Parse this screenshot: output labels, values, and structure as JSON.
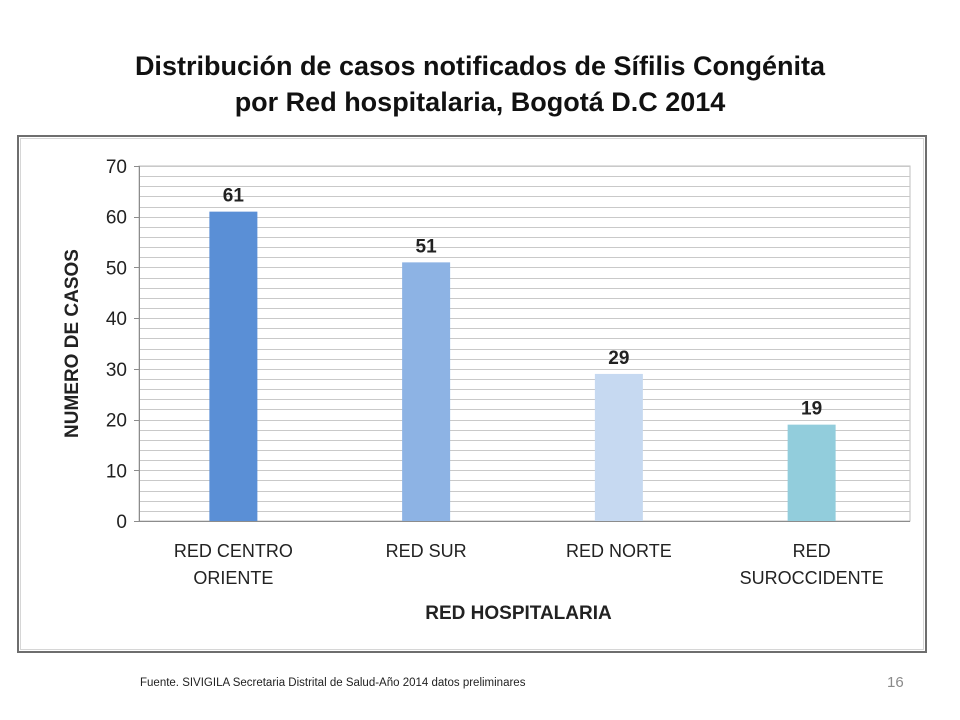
{
  "slide": {
    "title_line1": "Distribución de casos notificados de Sífilis Congénita",
    "title_line2": "por Red hospitalaria, Bogotá D.C 2014",
    "footer": "Fuente. SIVIGILA Secretaria Distrital de Salud-Año 2014 datos preliminares",
    "page_number": "16"
  },
  "chart_data": {
    "type": "bar",
    "title": "",
    "xlabel": "RED HOSPITALARIA",
    "ylabel": "NUMERO DE CASOS",
    "categories": [
      [
        "RED CENTRO",
        "ORIENTE"
      ],
      [
        "RED SUR"
      ],
      [
        "RED NORTE"
      ],
      [
        "RED",
        "SUROCCIDENTE"
      ]
    ],
    "values": [
      61,
      51,
      29,
      19
    ],
    "data_labels": [
      "61",
      "51",
      "29",
      "19"
    ],
    "bar_colors": [
      "#5a8fd6",
      "#8db3e4",
      "#c6d9f1",
      "#92cddc"
    ],
    "ylim": [
      0,
      70
    ],
    "yticks": [
      0,
      10,
      20,
      30,
      40,
      50,
      60,
      70
    ],
    "grid": true,
    "legend": "none"
  }
}
